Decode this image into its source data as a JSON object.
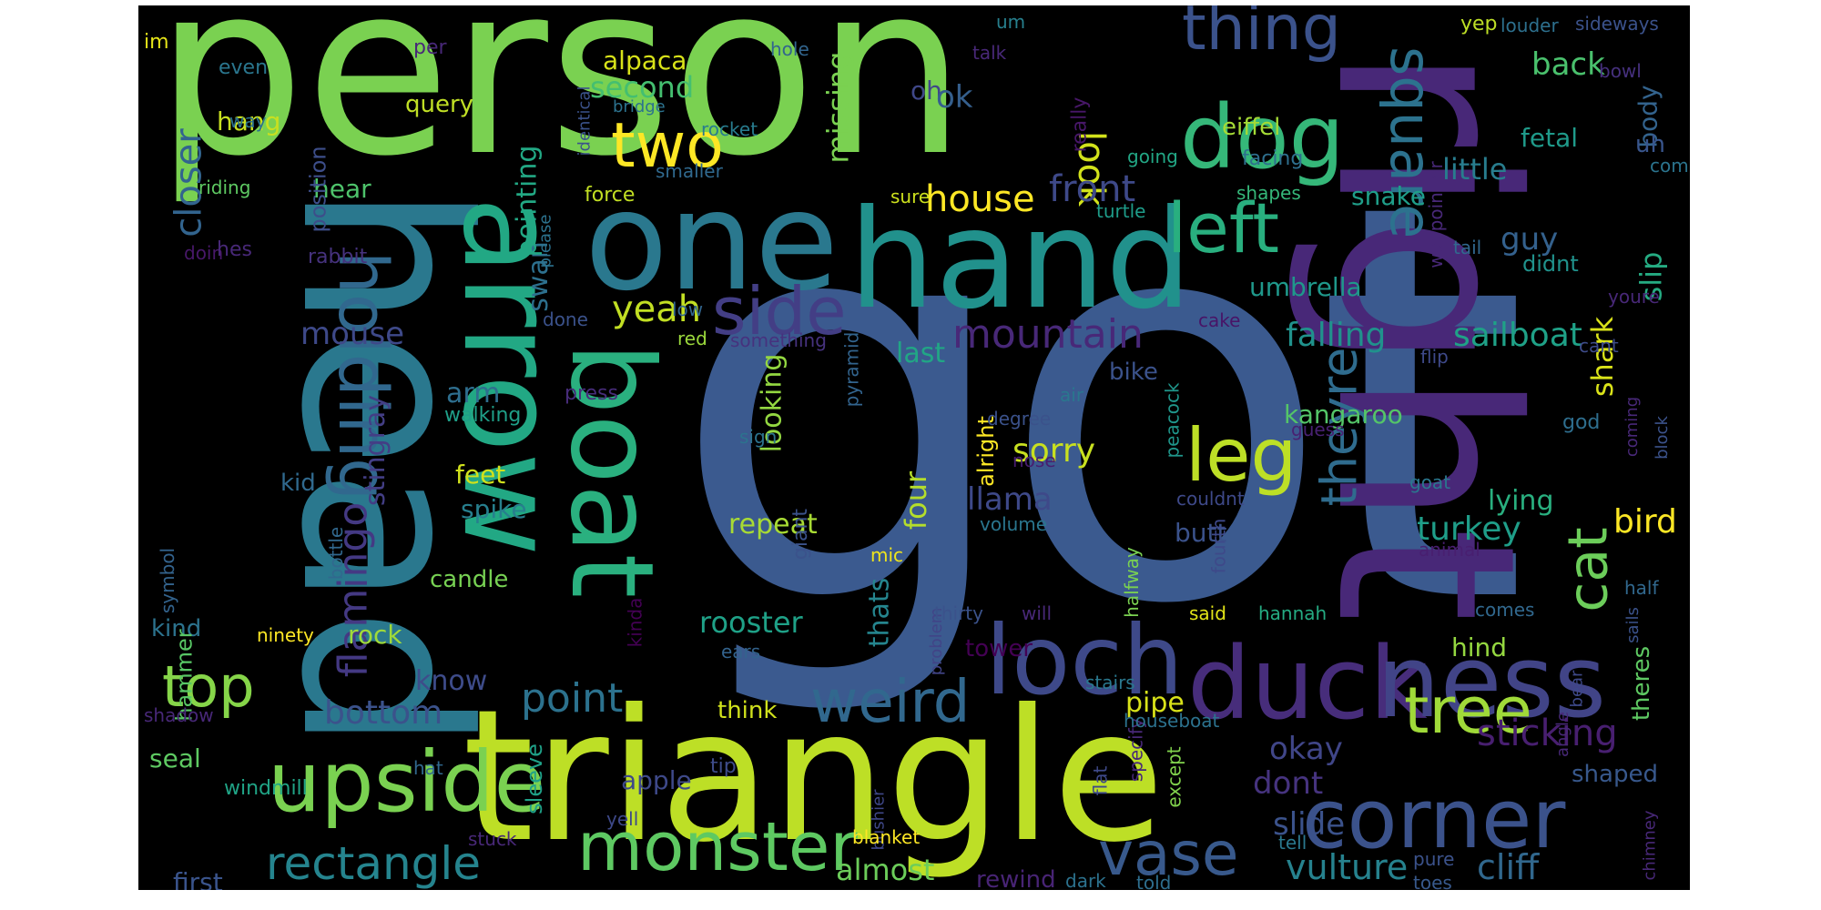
{
  "cloud": {
    "background": "#000000",
    "words": [
      {
        "text": "got",
        "color": "#3b5a8f"
      },
      {
        "text": "person",
        "color": "#7ad151"
      },
      {
        "text": "right",
        "color": "#482878"
      },
      {
        "text": "head",
        "color": "#2a788e"
      },
      {
        "text": "triangle",
        "color": "#bddf26"
      },
      {
        "text": "hand",
        "color": "#21918c"
      },
      {
        "text": "one",
        "color": "#2a788e"
      },
      {
        "text": "arrow",
        "color": "#22a884"
      },
      {
        "text": "boat",
        "color": "#2ab07f"
      },
      {
        "text": "duck",
        "color": "#472d7b"
      },
      {
        "text": "loch",
        "color": "#3e4989"
      },
      {
        "text": "ness",
        "color": "#414487"
      },
      {
        "text": "corner",
        "color": "#3b528b"
      },
      {
        "text": "upside",
        "color": "#7ad151"
      },
      {
        "text": "monster",
        "color": "#5ec962"
      },
      {
        "text": "dog",
        "color": "#35b779"
      },
      {
        "text": "thing",
        "color": "#3b528b"
      },
      {
        "text": "two",
        "color": "#fde725"
      },
      {
        "text": "holding",
        "color": "#31688e"
      },
      {
        "text": "side",
        "color": "#433e85"
      },
      {
        "text": "left",
        "color": "#29af7f"
      },
      {
        "text": "leg",
        "color": "#bddf26"
      },
      {
        "text": "square",
        "color": "#2c728e"
      },
      {
        "text": "tree",
        "color": "#a0da39"
      },
      {
        "text": "weird",
        "color": "#31688e"
      },
      {
        "text": "vase",
        "color": "#38598c"
      },
      {
        "text": "top",
        "color": "#86d549"
      },
      {
        "text": "rectangle",
        "color": "#25848e"
      },
      {
        "text": "cat",
        "color": "#6ccd5a"
      },
      {
        "text": "theyre",
        "color": "#2f6c8e"
      },
      {
        "text": "mountain",
        "color": "#482878"
      },
      {
        "text": "house",
        "color": "#fde725"
      },
      {
        "text": "point",
        "color": "#2c728e"
      },
      {
        "text": "flamingo",
        "color": "#443983"
      },
      {
        "text": "look",
        "color": "#d2e21b"
      },
      {
        "text": "yeah",
        "color": "#c2df23"
      },
      {
        "text": "closer",
        "color": "#32648e"
      },
      {
        "text": "front",
        "color": "#3e4989"
      },
      {
        "text": "sticking",
        "color": "#481f70"
      },
      {
        "text": "cliff",
        "color": "#31688e"
      },
      {
        "text": "vulture",
        "color": "#26828e"
      },
      {
        "text": "falling",
        "color": "#20928c"
      },
      {
        "text": "sailboat",
        "color": "#1fa187"
      },
      {
        "text": "turkey",
        "color": "#1f9e89"
      },
      {
        "text": "bird",
        "color": "#fde725"
      },
      {
        "text": "llama",
        "color": "#3e4989"
      },
      {
        "text": "sorry",
        "color": "#c8e020"
      },
      {
        "text": "bottom",
        "color": "#3b528b"
      },
      {
        "text": "mouse",
        "color": "#3e4989"
      },
      {
        "text": "slide",
        "color": "#3b528b"
      },
      {
        "text": "okay",
        "color": "#404688"
      },
      {
        "text": "dont",
        "color": "#46337f"
      },
      {
        "text": "shark",
        "color": "#dae319"
      },
      {
        "text": "slip",
        "color": "#25ab82"
      },
      {
        "text": "guy",
        "color": "#34618d"
      },
      {
        "text": "swan",
        "color": "#2d708e"
      },
      {
        "text": "pointing",
        "color": "#22a884"
      },
      {
        "text": "rooster",
        "color": "#1fa187"
      },
      {
        "text": "almost",
        "color": "#6ccd5a"
      },
      {
        "text": "second",
        "color": "#44bf70"
      },
      {
        "text": "alpaca",
        "color": "#d8e219"
      },
      {
        "text": "back",
        "color": "#4ac16d"
      },
      {
        "text": "missing",
        "color": "#7ad151"
      },
      {
        "text": "looking",
        "color": "#93d741"
      },
      {
        "text": "stingray",
        "color": "#433e85"
      },
      {
        "text": "arm",
        "color": "#2e6e8e"
      },
      {
        "text": "little",
        "color": "#287d8e"
      },
      {
        "text": "four",
        "color": "#b5de2b"
      },
      {
        "text": "thats",
        "color": "#25858e"
      },
      {
        "text": "last",
        "color": "#21a685"
      },
      {
        "text": "pipe",
        "color": "#d8e219"
      },
      {
        "text": "repeat",
        "color": "#a8db34"
      },
      {
        "text": "kangaroo",
        "color": "#54c568"
      },
      {
        "text": "umbrella",
        "color": "#1f988b"
      },
      {
        "text": "snake",
        "color": "#1f9e89"
      },
      {
        "text": "hear",
        "color": "#4ec36b"
      },
      {
        "text": "hang",
        "color": "#c8e020"
      },
      {
        "text": "butt",
        "color": "#3b528b"
      },
      {
        "text": "oh",
        "color": "#3f4788"
      },
      {
        "text": "ok",
        "color": "#355f8d"
      },
      {
        "text": "know",
        "color": "#3e4c8a"
      },
      {
        "text": "first",
        "color": "#3a548c"
      },
      {
        "text": "rewind",
        "color": "#482475"
      },
      {
        "text": "apple",
        "color": "#3e4989"
      },
      {
        "text": "tower",
        "color": "#440154"
      },
      {
        "text": "rock",
        "color": "#9fda3a"
      },
      {
        "text": "seal",
        "color": "#5ec962"
      },
      {
        "text": "kind",
        "color": "#2c738e"
      },
      {
        "text": "candle",
        "color": "#77d153"
      },
      {
        "text": "lying",
        "color": "#29af7f"
      },
      {
        "text": "spike",
        "color": "#277f8e"
      },
      {
        "text": "feet",
        "color": "#d0e11c"
      },
      {
        "text": "kid",
        "color": "#30698e"
      },
      {
        "text": "fetal",
        "color": "#1f9a8a"
      },
      {
        "text": "body",
        "color": "#33638d"
      },
      {
        "text": "uh",
        "color": "#39558c"
      },
      {
        "text": "hind",
        "color": "#95d840"
      },
      {
        "text": "theres",
        "color": "#5ec962"
      },
      {
        "text": "shaped",
        "color": "#38588c"
      },
      {
        "text": "alright",
        "color": "#fde725"
      },
      {
        "text": "hammer",
        "color": "#58c765"
      },
      {
        "text": "windmill",
        "color": "#20a486"
      },
      {
        "text": "sleeve",
        "color": "#1fa188"
      },
      {
        "text": "query",
        "color": "#c0df25"
      },
      {
        "text": "position",
        "color": "#3d4e8a"
      },
      {
        "text": "even",
        "color": "#2a768e"
      },
      {
        "text": "eiffel",
        "color": "#a5db36"
      },
      {
        "text": "yep",
        "color": "#bddf26"
      },
      {
        "text": "louder",
        "color": "#2d708e"
      },
      {
        "text": "sideways",
        "color": "#3b528b"
      },
      {
        "text": "im",
        "color": "#e5e419"
      },
      {
        "text": "per",
        "color": "#482878"
      },
      {
        "text": "hole",
        "color": "#32658e"
      },
      {
        "text": "um",
        "color": "#27808e"
      },
      {
        "text": "bridge",
        "color": "#2c728e"
      },
      {
        "text": "rocket",
        "color": "#287c8e"
      },
      {
        "text": "way",
        "color": "#2c728e"
      },
      {
        "text": "bowl",
        "color": "#46307e"
      },
      {
        "text": "talk",
        "color": "#482878"
      },
      {
        "text": "identical",
        "color": "#3b528b"
      },
      {
        "text": "smaller",
        "color": "#30698e"
      },
      {
        "text": "really",
        "color": "#481769"
      },
      {
        "text": "going",
        "color": "#22a785"
      },
      {
        "text": "facing",
        "color": "#2e6f8e"
      },
      {
        "text": "comb",
        "color": "#2b748e"
      },
      {
        "text": "force",
        "color": "#c2df23"
      },
      {
        "text": "sure",
        "color": "#cde11d"
      },
      {
        "text": "turtle",
        "color": "#1e9c89"
      },
      {
        "text": "shapes",
        "color": "#35b779"
      },
      {
        "text": "waypointier",
        "color": "#482878"
      },
      {
        "text": "tail",
        "color": "#31688e"
      },
      {
        "text": "riding",
        "color": "#5ec962"
      },
      {
        "text": "doin",
        "color": "#48186a"
      },
      {
        "text": "hes",
        "color": "#482878"
      },
      {
        "text": "rabbit",
        "color": "#46327e"
      },
      {
        "text": "please",
        "color": "#2c728e"
      },
      {
        "text": "done",
        "color": "#3b528b"
      },
      {
        "text": "low",
        "color": "#32658e"
      },
      {
        "text": "red",
        "color": "#9bd93c"
      },
      {
        "text": "something",
        "color": "#46327e"
      },
      {
        "text": "pyramid",
        "color": "#32648e"
      },
      {
        "text": "cake",
        "color": "#481467"
      },
      {
        "text": "air",
        "color": "#2a778e"
      },
      {
        "text": "youre",
        "color": "#482878"
      },
      {
        "text": "cant",
        "color": "#3e4c8a"
      },
      {
        "text": "flip",
        "color": "#3e4989"
      },
      {
        "text": "didnt",
        "color": "#20928c"
      },
      {
        "text": "press",
        "color": "#472c7a"
      },
      {
        "text": "walking",
        "color": "#1f9f88"
      },
      {
        "text": "sign",
        "color": "#2c738e"
      },
      {
        "text": "degree",
        "color": "#3b528b"
      },
      {
        "text": "nose",
        "color": "#481d6f"
      },
      {
        "text": "bike",
        "color": "#3b528b"
      },
      {
        "text": "peacock",
        "color": "#1f968b"
      },
      {
        "text": "guess",
        "color": "#482172"
      },
      {
        "text": "god",
        "color": "#2e6e8e"
      },
      {
        "text": "block",
        "color": "#3b528b"
      },
      {
        "text": "coming",
        "color": "#482878"
      },
      {
        "text": "goat",
        "color": "#2a778e"
      },
      {
        "text": "couldnt",
        "color": "#3e4989"
      },
      {
        "text": "volume",
        "color": "#2a768e"
      },
      {
        "text": "giant",
        "color": "#3b528b"
      },
      {
        "text": "mic",
        "color": "#efe51c"
      },
      {
        "text": "fourth",
        "color": "#3e4989"
      },
      {
        "text": "animal",
        "color": "#481f70"
      },
      {
        "text": "half",
        "color": "#31688e"
      },
      {
        "text": "bottle",
        "color": "#31688e"
      },
      {
        "text": "symbol",
        "color": "#33638d"
      },
      {
        "text": "ninety",
        "color": "#fde725"
      },
      {
        "text": "kinda",
        "color": "#440154"
      },
      {
        "text": "ears",
        "color": "#33638d"
      },
      {
        "text": "problem",
        "color": "#414487"
      },
      {
        "text": "thirty",
        "color": "#3b528b"
      },
      {
        "text": "will",
        "color": "#482878"
      },
      {
        "text": "halfway",
        "color": "#7ad151"
      },
      {
        "text": "said",
        "color": "#e2e418"
      },
      {
        "text": "hannah",
        "color": "#25ab82"
      },
      {
        "text": "comes",
        "color": "#31688e"
      },
      {
        "text": "sails",
        "color": "#3b528b"
      },
      {
        "text": "stairs",
        "color": "#2a788e"
      },
      {
        "text": "think",
        "color": "#d0e11c"
      },
      {
        "text": "shadow",
        "color": "#482878"
      },
      {
        "text": "hat",
        "color": "#31688e"
      },
      {
        "text": "tip",
        "color": "#3e4c8a"
      },
      {
        "text": "bushier",
        "color": "#3f4788"
      },
      {
        "text": "flat",
        "color": "#3e4989"
      },
      {
        "text": "specify",
        "color": "#482878"
      },
      {
        "text": "except",
        "color": "#81d34d"
      },
      {
        "text": "houseboat",
        "color": "#2c728e"
      },
      {
        "text": "angle",
        "color": "#482878"
      },
      {
        "text": "bear",
        "color": "#3e4989"
      },
      {
        "text": "stuck",
        "color": "#482878"
      },
      {
        "text": "yell",
        "color": "#3e4989"
      },
      {
        "text": "blanket",
        "color": "#fde725"
      },
      {
        "text": "tell",
        "color": "#2a788e"
      },
      {
        "text": "pure",
        "color": "#3b528b"
      },
      {
        "text": "dark",
        "color": "#2c728e"
      },
      {
        "text": "told",
        "color": "#2e6e8e"
      },
      {
        "text": "toes",
        "color": "#38598c"
      },
      {
        "text": "chimney",
        "color": "#482878"
      }
    ]
  }
}
